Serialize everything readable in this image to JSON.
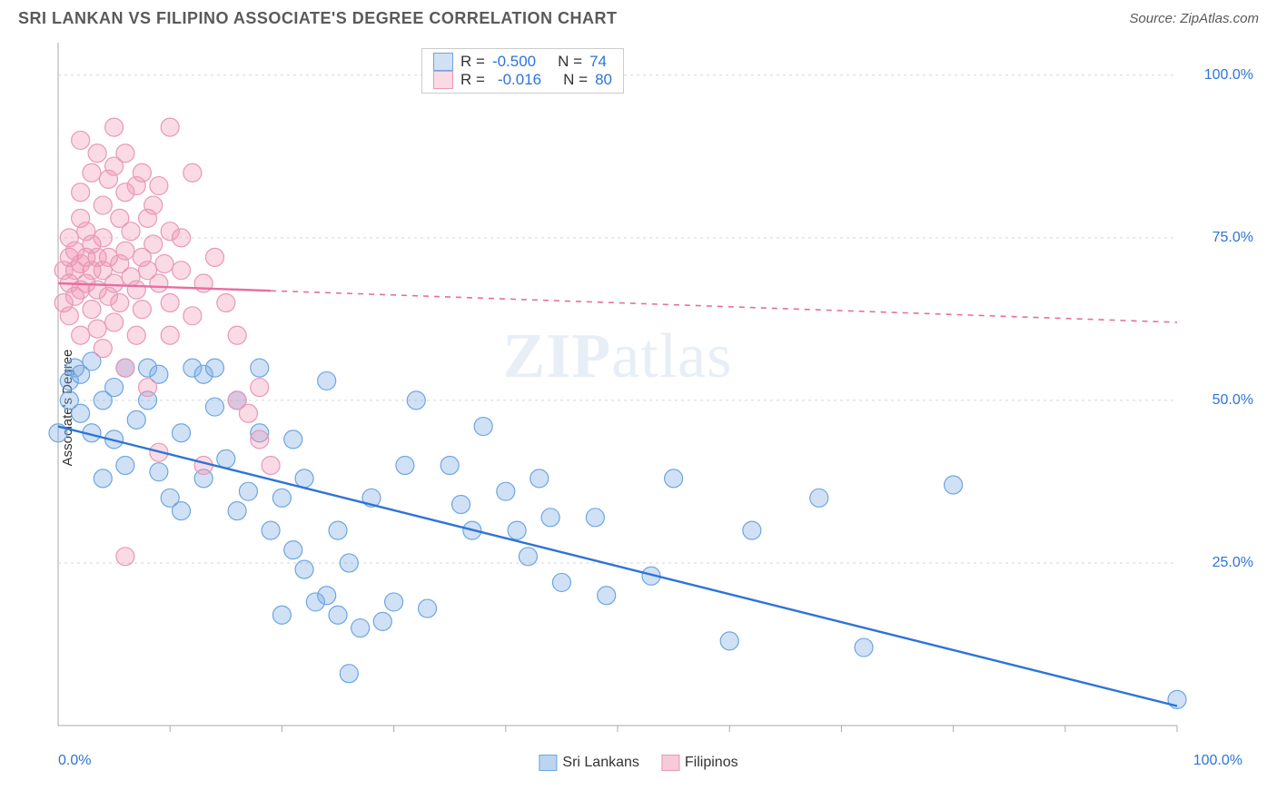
{
  "title": "SRI LANKAN VS FILIPINO ASSOCIATE'S DEGREE CORRELATION CHART",
  "source_prefix": "Source: ",
  "source_name": "ZipAtlas.com",
  "ylabel": "Associate's Degree",
  "watermark_a": "ZIP",
  "watermark_b": "atlas",
  "scatter": {
    "type": "scatter",
    "background_color": "#ffffff",
    "grid_color": "#d6d6d6",
    "axis_color": "#aaaaaa",
    "marker_radius": 10,
    "marker_stroke_width": 1.2,
    "line_width_solid": 2.4,
    "line_width_dash": 1.6,
    "dash_pattern": "6 6",
    "xlim": [
      0,
      100
    ],
    "ylim": [
      0,
      105
    ],
    "ytick_values": [
      25,
      50,
      75,
      100
    ],
    "ytick_labels": [
      "25.0%",
      "50.0%",
      "75.0%",
      "100.0%"
    ],
    "xtick_minor": [
      10,
      20,
      30,
      40,
      50,
      60,
      70,
      80,
      90,
      100
    ],
    "x_axis_labels": {
      "left": "0.0%",
      "right": "100.0%"
    },
    "series": [
      {
        "name": "Sri Lankans",
        "fill": "rgba(120,170,230,0.35)",
        "stroke": "#6da6e0",
        "line_color": "#2e74d8",
        "r_value": "-0.500",
        "n_value": "74",
        "regression": {
          "x1": 0,
          "y1": 46,
          "x2": 100,
          "y2": 3
        },
        "solid_extent_x": 100,
        "points": [
          [
            0,
            45
          ],
          [
            1,
            50
          ],
          [
            1,
            53
          ],
          [
            1.5,
            55
          ],
          [
            2,
            54
          ],
          [
            3,
            56
          ],
          [
            2,
            48
          ],
          [
            3,
            45
          ],
          [
            4,
            50
          ],
          [
            4,
            38
          ],
          [
            5,
            52
          ],
          [
            5,
            44
          ],
          [
            6,
            40
          ],
          [
            6,
            55
          ],
          [
            7,
            47
          ],
          [
            8,
            55
          ],
          [
            8,
            50
          ],
          [
            9,
            54
          ],
          [
            9,
            39
          ],
          [
            10,
            35
          ],
          [
            11,
            33
          ],
          [
            11,
            45
          ],
          [
            12,
            55
          ],
          [
            13,
            54
          ],
          [
            13,
            38
          ],
          [
            14,
            49
          ],
          [
            14,
            55
          ],
          [
            15,
            41
          ],
          [
            16,
            50
          ],
          [
            16,
            33
          ],
          [
            17,
            36
          ],
          [
            18,
            55
          ],
          [
            18,
            45
          ],
          [
            19,
            30
          ],
          [
            20,
            35
          ],
          [
            20,
            17
          ],
          [
            21,
            44
          ],
          [
            21,
            27
          ],
          [
            22,
            24
          ],
          [
            22,
            38
          ],
          [
            23,
            19
          ],
          [
            24,
            53
          ],
          [
            24,
            20
          ],
          [
            25,
            17
          ],
          [
            25,
            30
          ],
          [
            26,
            25
          ],
          [
            26,
            8
          ],
          [
            27,
            15
          ],
          [
            28,
            35
          ],
          [
            29,
            16
          ],
          [
            30,
            19
          ],
          [
            31,
            40
          ],
          [
            32,
            50
          ],
          [
            33,
            18
          ],
          [
            35,
            40
          ],
          [
            36,
            34
          ],
          [
            37,
            30
          ],
          [
            38,
            46
          ],
          [
            40,
            36
          ],
          [
            41,
            30
          ],
          [
            42,
            26
          ],
          [
            43,
            38
          ],
          [
            44,
            32
          ],
          [
            45,
            22
          ],
          [
            48,
            32
          ],
          [
            49,
            20
          ],
          [
            53,
            23
          ],
          [
            55,
            38
          ],
          [
            60,
            13
          ],
          [
            62,
            30
          ],
          [
            68,
            35
          ],
          [
            72,
            12
          ],
          [
            80,
            37
          ],
          [
            100,
            4
          ]
        ]
      },
      {
        "name": "Filipinos",
        "fill": "rgba(240,150,180,0.35)",
        "stroke": "#e898b6",
        "line_color": "#e76ea0",
        "r_value": "-0.016",
        "n_value": "80",
        "regression": {
          "x1": 0,
          "y1": 68,
          "x2": 100,
          "y2": 62
        },
        "solid_extent_x": 19,
        "points": [
          [
            0.5,
            65
          ],
          [
            0.5,
            70
          ],
          [
            1,
            72
          ],
          [
            1,
            68
          ],
          [
            1,
            63
          ],
          [
            1,
            75
          ],
          [
            1.5,
            66
          ],
          [
            1.5,
            70
          ],
          [
            1.5,
            73
          ],
          [
            2,
            78
          ],
          [
            2,
            71
          ],
          [
            2,
            67
          ],
          [
            2,
            60
          ],
          [
            2,
            82
          ],
          [
            2,
            90
          ],
          [
            2.5,
            72
          ],
          [
            2.5,
            68
          ],
          [
            2.5,
            76
          ],
          [
            3,
            64
          ],
          [
            3,
            70
          ],
          [
            3,
            74
          ],
          [
            3,
            85
          ],
          [
            3.5,
            61
          ],
          [
            3.5,
            67
          ],
          [
            3.5,
            72
          ],
          [
            3.5,
            88
          ],
          [
            4,
            70
          ],
          [
            4,
            58
          ],
          [
            4,
            75
          ],
          [
            4,
            80
          ],
          [
            4.5,
            66
          ],
          [
            4.5,
            72
          ],
          [
            4.5,
            84
          ],
          [
            5,
            92
          ],
          [
            5,
            68
          ],
          [
            5,
            62
          ],
          [
            5,
            86
          ],
          [
            5.5,
            71
          ],
          [
            5.5,
            78
          ],
          [
            5.5,
            65
          ],
          [
            6,
            73
          ],
          [
            6,
            82
          ],
          [
            6,
            88
          ],
          [
            6,
            55
          ],
          [
            6.5,
            69
          ],
          [
            6.5,
            76
          ],
          [
            7,
            83
          ],
          [
            7,
            60
          ],
          [
            7,
            67
          ],
          [
            7.5,
            72
          ],
          [
            7.5,
            85
          ],
          [
            7.5,
            64
          ],
          [
            8,
            70
          ],
          [
            8,
            78
          ],
          [
            8,
            52
          ],
          [
            8.5,
            74
          ],
          [
            8.5,
            80
          ],
          [
            9,
            68
          ],
          [
            9,
            83
          ],
          [
            9,
            42
          ],
          [
            9.5,
            71
          ],
          [
            10,
            76
          ],
          [
            10,
            60
          ],
          [
            10,
            65
          ],
          [
            10,
            92
          ],
          [
            11,
            70
          ],
          [
            11,
            75
          ],
          [
            12,
            63
          ],
          [
            12,
            85
          ],
          [
            13,
            68
          ],
          [
            13,
            40
          ],
          [
            14,
            72
          ],
          [
            15,
            65
          ],
          [
            16,
            60
          ],
          [
            16,
            50
          ],
          [
            17,
            48
          ],
          [
            18,
            52
          ],
          [
            18,
            44
          ],
          [
            6,
            26
          ],
          [
            19,
            40
          ]
        ]
      }
    ]
  },
  "top_legend": {
    "r_label": "R =",
    "n_label": "N ="
  },
  "bottom_legend": {
    "items": [
      {
        "label": "Sri Lankans",
        "fill": "rgba(120,170,230,0.5)",
        "stroke": "#6da6e0"
      },
      {
        "label": "Filipinos",
        "fill": "rgba(240,150,180,0.5)",
        "stroke": "#e898b6"
      }
    ]
  }
}
